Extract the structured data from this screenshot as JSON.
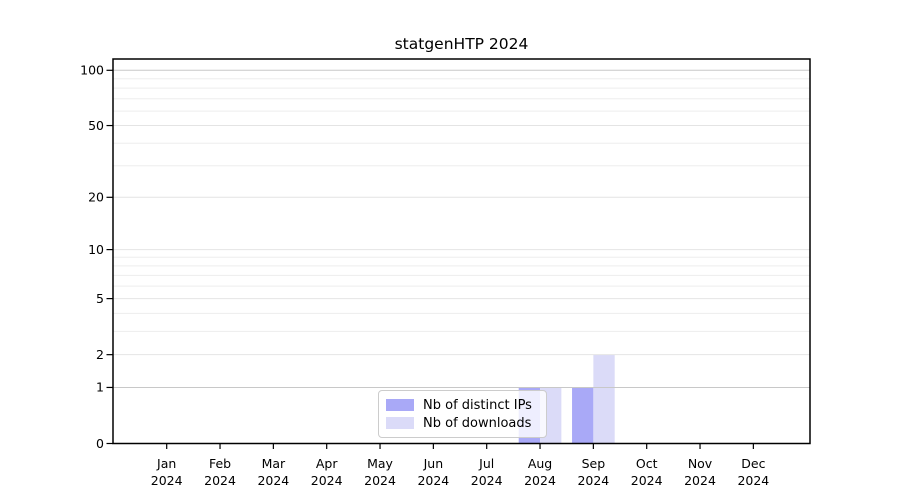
{
  "chart_data": {
    "type": "bar",
    "title": "statgenHTP 2024",
    "categories": [
      "Jan",
      "Feb",
      "Mar",
      "Apr",
      "May",
      "Jun",
      "Jul",
      "Aug",
      "Sep",
      "Oct",
      "Nov",
      "Dec"
    ],
    "category_year": "2024",
    "series": [
      {
        "name": "Nb of distinct IPs",
        "color": "#a9a9f7",
        "values": [
          0,
          0,
          0,
          0,
          0,
          0,
          0,
          1,
          1,
          0,
          0,
          0
        ]
      },
      {
        "name": "Nb of downloads",
        "color": "#dbdbf8",
        "values": [
          0,
          0,
          0,
          0,
          0,
          0,
          0,
          1,
          2,
          0,
          0,
          0
        ]
      }
    ],
    "y_axis": {
      "scale": "log1p",
      "tick_values": [
        0,
        1,
        2,
        5,
        10,
        20,
        50,
        100
      ],
      "minor_gridline_values": [
        3,
        4,
        6,
        7,
        8,
        9,
        30,
        40,
        60,
        70,
        80,
        90
      ],
      "emphasized_gridline_values": [
        1,
        100
      ],
      "range": [
        0,
        116
      ]
    },
    "grid": true,
    "legend": {
      "position": "lower-center"
    }
  }
}
